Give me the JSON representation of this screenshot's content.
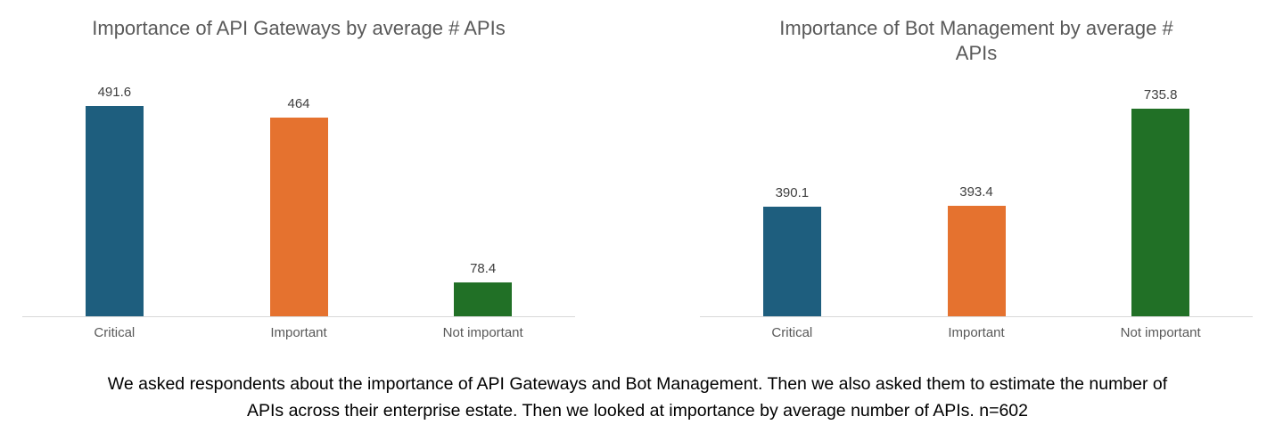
{
  "caption": "We asked respondents about the importance of API Gateways and Bot Management. Then we also asked them to estimate the number of\nAPIs across their enterprise estate. Then we looked at importance by average number of APIs. n=602",
  "palette": {
    "critical_blue": "#1e5e7e",
    "important_orange": "#e5722f",
    "not_important_green": "#217026",
    "axis_line": "#d9d9d9",
    "title_gray": "#595959",
    "label_gray": "#3f3f3f"
  },
  "chart_data": [
    {
      "type": "bar",
      "title": "Importance of API Gateways by average # APIs",
      "categories": [
        "Critical",
        "Important",
        "Not important"
      ],
      "values": [
        491.6,
        464,
        78.4
      ],
      "value_labels": [
        "491.6",
        "464",
        "78.4"
      ],
      "bar_colors": [
        "#1e5e7e",
        "#e5722f",
        "#217026"
      ],
      "xlabel": "",
      "ylabel": "",
      "ylim": [
        0,
        500
      ],
      "grid": false,
      "legend_position": "none"
    },
    {
      "type": "bar",
      "title": "Importance of Bot Management by average #\nAPIs",
      "categories": [
        "Critical",
        "Important",
        "Not important"
      ],
      "values": [
        390.1,
        393.4,
        735.8
      ],
      "value_labels": [
        "390.1",
        "393.4",
        "735.8"
      ],
      "bar_colors": [
        "#1e5e7e",
        "#e5722f",
        "#217026"
      ],
      "xlabel": "",
      "ylabel": "",
      "ylim": [
        0,
        800
      ],
      "grid": false,
      "legend_position": "none"
    }
  ]
}
